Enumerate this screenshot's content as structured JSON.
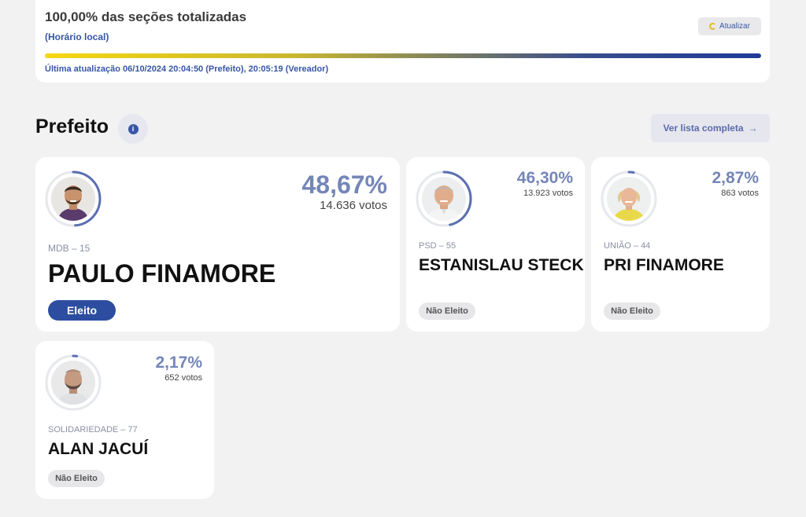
{
  "status": {
    "title": "100,00% das seções totalizadas",
    "local_time": "(Horário local)",
    "refresh_label": "Atualizar",
    "progress_percent": 100,
    "last_update": "Última atualização 06/10/2024 20:04:50 (Prefeito), 20:05:19 (Vereador)"
  },
  "section": {
    "title": "Prefeito",
    "info_icon": "i",
    "list_button": "Ver lista completa",
    "list_arrow": "→"
  },
  "candidates": [
    {
      "party": "MDB – 15",
      "name": "PAULO FINAMORE",
      "percent": "48,67%",
      "votes": "14.636 votos",
      "status": "Eleito",
      "share": 0.4867
    },
    {
      "party": "PSD – 55",
      "name": "ESTANISLAU STECK",
      "percent": "46,30%",
      "votes": "13.923 votos",
      "status": "Não Eleito",
      "share": 0.463
    },
    {
      "party": "UNIÃO – 44",
      "name": "PRI FINAMORE",
      "percent": "2,87%",
      "votes": "863 votos",
      "status": "Não Eleito",
      "share": 0.0287
    },
    {
      "party": "SOLIDARIEDADE – 77",
      "name": "ALAN JACUÍ",
      "percent": "2,17%",
      "votes": "652 votos",
      "status": "Não Eleito",
      "share": 0.0217
    }
  ],
  "colors": {
    "accent": "#3656a6",
    "percent": "#7486b7",
    "ring_track": "#e6e8ee",
    "ring_fill": "#5b6fb0"
  }
}
